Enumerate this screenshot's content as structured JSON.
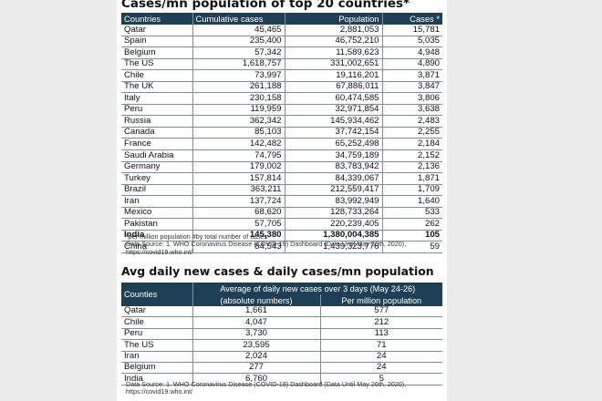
{
  "table1": {
    "title": "Cases/mn population of top 20 countries*",
    "headers": [
      "Countries",
      "Cumulative cases",
      "Population",
      "Cases *"
    ],
    "rows": [
      [
        "Qatar",
        "45,465",
        "2,881,053",
        "15,781"
      ],
      [
        "Spain",
        "235,400",
        "46,752,210",
        "5,035"
      ],
      [
        "Belgium",
        "57,342",
        "11,589,623",
        "4,948"
      ],
      [
        "The US",
        "1,618,757",
        "331,002,651",
        "4,890"
      ],
      [
        "Chile",
        "73,997",
        "19,116,201",
        "3,871"
      ],
      [
        "The UK",
        "261,188",
        "67,886,011",
        "3,847"
      ],
      [
        "Italy",
        "230,158",
        "60,474,585",
        "3,806"
      ],
      [
        "Peru",
        "119,959",
        "32,971,854",
        "3,638"
      ],
      [
        "Russia",
        "362,342",
        "145,934,462",
        "2,483"
      ],
      [
        "Canada",
        "85,103",
        "37,742,154",
        "2,255"
      ],
      [
        "France",
        "142,482",
        "65,252,498",
        "2,184"
      ],
      [
        "Saudi Arabia",
        "74,795",
        "34,759,189",
        "2,152"
      ],
      [
        "Germany",
        "179,002",
        "83,783,942",
        "2,136"
      ],
      [
        "Turkey",
        "157,814",
        "84,339,067",
        "1,871"
      ],
      [
        "Brazil",
        "363,211",
        "212,559,417",
        "1,709"
      ],
      [
        "Iran",
        "137,724",
        "83,992,949",
        "1,640"
      ],
      [
        "Mexico",
        "68,620",
        "128,733,264",
        "533"
      ],
      [
        "Pakistan",
        "57,705",
        "220,239,405",
        "262"
      ],
      [
        "India",
        "145,380",
        "1,380,004,385",
        "105"
      ],
      [
        "China",
        "84,543",
        "1,439,323,776",
        "59"
      ]
    ],
    "highlight_row": "India",
    "footnote_1": "*per million population  #by total number of cases",
    "footnote_2": "Data Source: 1. WHO Coronavirus Disease (COVID-19) Dashboard (Data Until May 26th, 2020), https://covid19.who.int/"
  },
  "table2": {
    "title": "Avg daily new cases & daily cases/mn population",
    "group_header": "Average of daily new cases over 3 days (May 24-26)",
    "headers": [
      "Counties",
      "(absolute numbers)",
      "Per million population"
    ],
    "rows": [
      [
        "Qatar",
        "1,661",
        "577"
      ],
      [
        "Chile",
        "4,047",
        "212"
      ],
      [
        "Peru",
        "3,730",
        "113"
      ],
      [
        "The US",
        "23,595",
        "71"
      ],
      [
        "Iran",
        "2,024",
        "24"
      ],
      [
        "Belgium",
        "277",
        "24"
      ],
      [
        "India",
        "6,760",
        "5"
      ]
    ],
    "footnote": "Data Source: 1. WHO Coronavirus Disease (COVID-19) Dashboard (Data Until May 26th, 2020), https://covid19.who.int/"
  },
  "colors": {
    "header_bg": "#1f3f55",
    "header_text": "#ffffff",
    "rule": "#7d8f9c"
  }
}
